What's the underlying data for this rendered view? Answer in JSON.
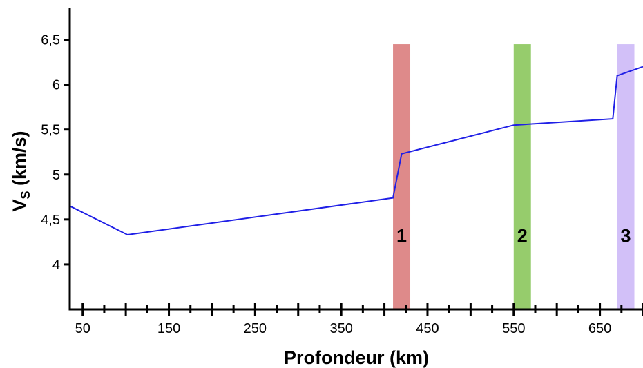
{
  "chart_data": {
    "type": "line",
    "xlabel": "Profondeur (km)",
    "ylabel_main": "V",
    "ylabel_sub": "S",
    "ylabel_unit": " (km/s)",
    "xlim": [
      35,
      700
    ],
    "ylim": [
      3.5,
      6.85
    ],
    "x_ticks": [
      {
        "value": 50,
        "label": "50"
      },
      {
        "value": 150,
        "label": "150"
      },
      {
        "value": 250,
        "label": "250"
      },
      {
        "value": 350,
        "label": "350"
      },
      {
        "value": 450,
        "label": "450"
      },
      {
        "value": 550,
        "label": "550"
      },
      {
        "value": 650,
        "label": "650"
      }
    ],
    "x_major_ticks": [
      50,
      100,
      150,
      200,
      250,
      300,
      350,
      400,
      450,
      500,
      550,
      600,
      650,
      700
    ],
    "x_minor_ticks": [
      75,
      125,
      175,
      225,
      275,
      325,
      375,
      425,
      475,
      525,
      575,
      625,
      675
    ],
    "y_ticks": [
      {
        "value": 4,
        "label": "4"
      },
      {
        "value": 4.5,
        "label": "4,5"
      },
      {
        "value": 5,
        "label": "5"
      },
      {
        "value": 5.5,
        "label": "5,5"
      },
      {
        "value": 6,
        "label": "6"
      },
      {
        "value": 6.5,
        "label": "6,5"
      }
    ],
    "grid": false,
    "series": [
      {
        "color": "#1f1fe6",
        "x": [
          35,
          102,
          410,
          420,
          550,
          665,
          670,
          700
        ],
        "y": [
          4.65,
          4.33,
          4.74,
          5.23,
          5.55,
          5.62,
          6.1,
          6.2
        ]
      }
    ],
    "zones": [
      {
        "label": "1",
        "x_start": 410,
        "x_end": 430,
        "color": "#de8a8a"
      },
      {
        "label": "2",
        "x_start": 550,
        "x_end": 570,
        "color": "#96cc6c"
      },
      {
        "label": "3",
        "x_start": 670,
        "x_end": 690,
        "color": "#d2c0f8"
      }
    ]
  }
}
